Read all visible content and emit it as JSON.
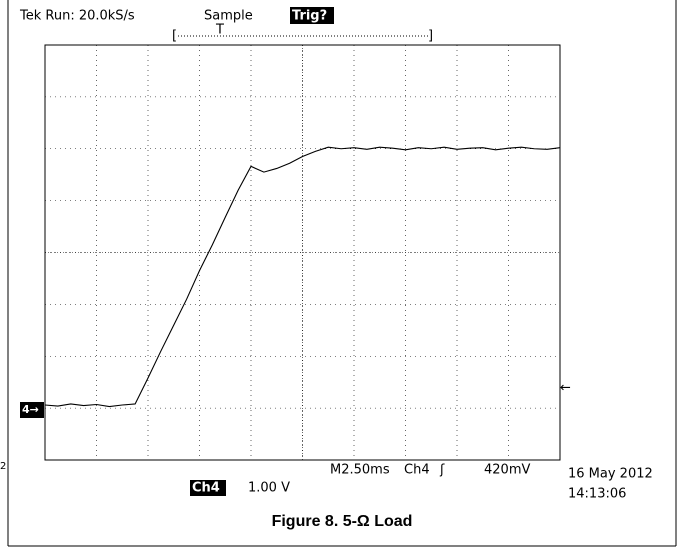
{
  "chart_data": {
    "type": "line",
    "header": {
      "status": "Tek Run: 20.0kS/s",
      "mode": "Sample",
      "trigger": "Trig?"
    },
    "ground_marker": "4→",
    "side_text": "2",
    "readout": {
      "timebase": "M2.50ms",
      "trigger_channel": "Ch4",
      "trigger_level": "420mV",
      "channel": "Ch4",
      "scale": "1.00 V",
      "date": "16 May 2012",
      "time": "14:13:06"
    },
    "title": "Figure 8. 5-Ω Load",
    "xlim": [
      0,
      10
    ],
    "ylim": [
      0,
      8
    ],
    "grid": true,
    "color": "#000000",
    "x": [
      0,
      0.25,
      0.5,
      0.75,
      1,
      1.25,
      1.5,
      1.75,
      2,
      2.25,
      2.5,
      2.75,
      3,
      3.25,
      3.5,
      3.75,
      4,
      4.25,
      4.5,
      4.75,
      5,
      5.25,
      5.5,
      5.75,
      6,
      6.25,
      6.5,
      6.75,
      7,
      7.25,
      7.5,
      7.75,
      8,
      8.25,
      8.5,
      8.75,
      9,
      9.25,
      9.5,
      9.75,
      10
    ],
    "values": [
      1.06,
      1.04,
      1.08,
      1.05,
      1.07,
      1.03,
      1.06,
      1.08,
      1.58,
      2.1,
      2.6,
      3.1,
      3.65,
      4.15,
      4.68,
      5.2,
      5.66,
      5.55,
      5.62,
      5.72,
      5.85,
      5.95,
      6.03,
      6.0,
      6.02,
      5.99,
      6.03,
      6.01,
      5.98,
      6.02,
      6.0,
      6.03,
      5.99,
      6.01,
      6.02,
      5.98,
      6.01,
      6.03,
      6.0,
      5.99,
      6.02
    ]
  }
}
